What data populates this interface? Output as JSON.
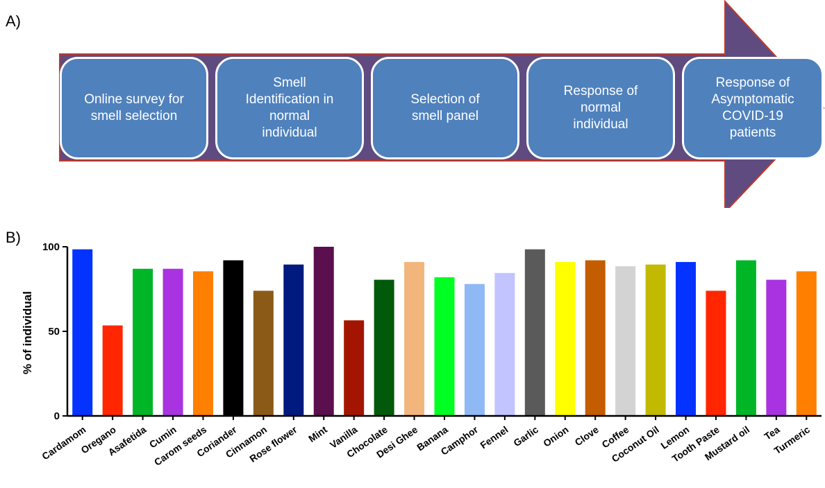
{
  "panel_a": {
    "label": "A)",
    "steps": [
      "Online survey for\nsmell selection",
      "Smell\nIdentification in\nnormal\nindividual",
      "Selection of\nsmell panel",
      "Response of\nnormal\nindividual",
      "Response of\nAsymptomatic\nCOVID-19\npatients"
    ],
    "colors": {
      "box": "#4f81bd",
      "arrow": "#5f4b7f",
      "arrow_outline": "#c0392b"
    }
  },
  "panel_b": {
    "label": "B)"
  },
  "chart_data": {
    "type": "bar",
    "title": "",
    "xlabel": "",
    "ylabel": "% of individual",
    "ylim": [
      0,
      100
    ],
    "yticks": [
      "0",
      "50",
      "100"
    ],
    "ytick_values": [
      0,
      50,
      100
    ],
    "grid": false,
    "categories": [
      "Cardamom",
      "Oregano",
      "Asafetida",
      "Cumin",
      "Carom seeds",
      "Coriander",
      "Cinnamon",
      "Rose flower",
      "Mint",
      "Vanilla",
      "Chocolate",
      "Desi Ghee",
      "Banana",
      "Camphor",
      "Fennel",
      "Garlic",
      "Onion",
      "Clove",
      "Coffee",
      "Coconut Oil",
      "Lemon",
      "Tooth Paste",
      "Mustard oil",
      "Tea",
      "Turmeric"
    ],
    "values": [
      98.5,
      53.5,
      87,
      87,
      85.5,
      92,
      74,
      89.5,
      100,
      56.5,
      80.5,
      91,
      82,
      78,
      84.5,
      98.5,
      91,
      92,
      88.5,
      89.5,
      91,
      74,
      92,
      80.5,
      85.5
    ],
    "colors": [
      "#0433ff",
      "#ff2600",
      "#00b627",
      "#a933e0",
      "#ff7f00",
      "#000000",
      "#8b5a16",
      "#001a80",
      "#5c0f4e",
      "#a31500",
      "#005a0a",
      "#f2b67d",
      "#00ff22",
      "#8fb9f5",
      "#c1c4ff",
      "#5a5a5a",
      "#ffff00",
      "#c45c00",
      "#d3d3d3",
      "#c2ba00",
      "#0433ff",
      "#ff2600",
      "#00b627",
      "#a933e0",
      "#ff7f00"
    ]
  }
}
